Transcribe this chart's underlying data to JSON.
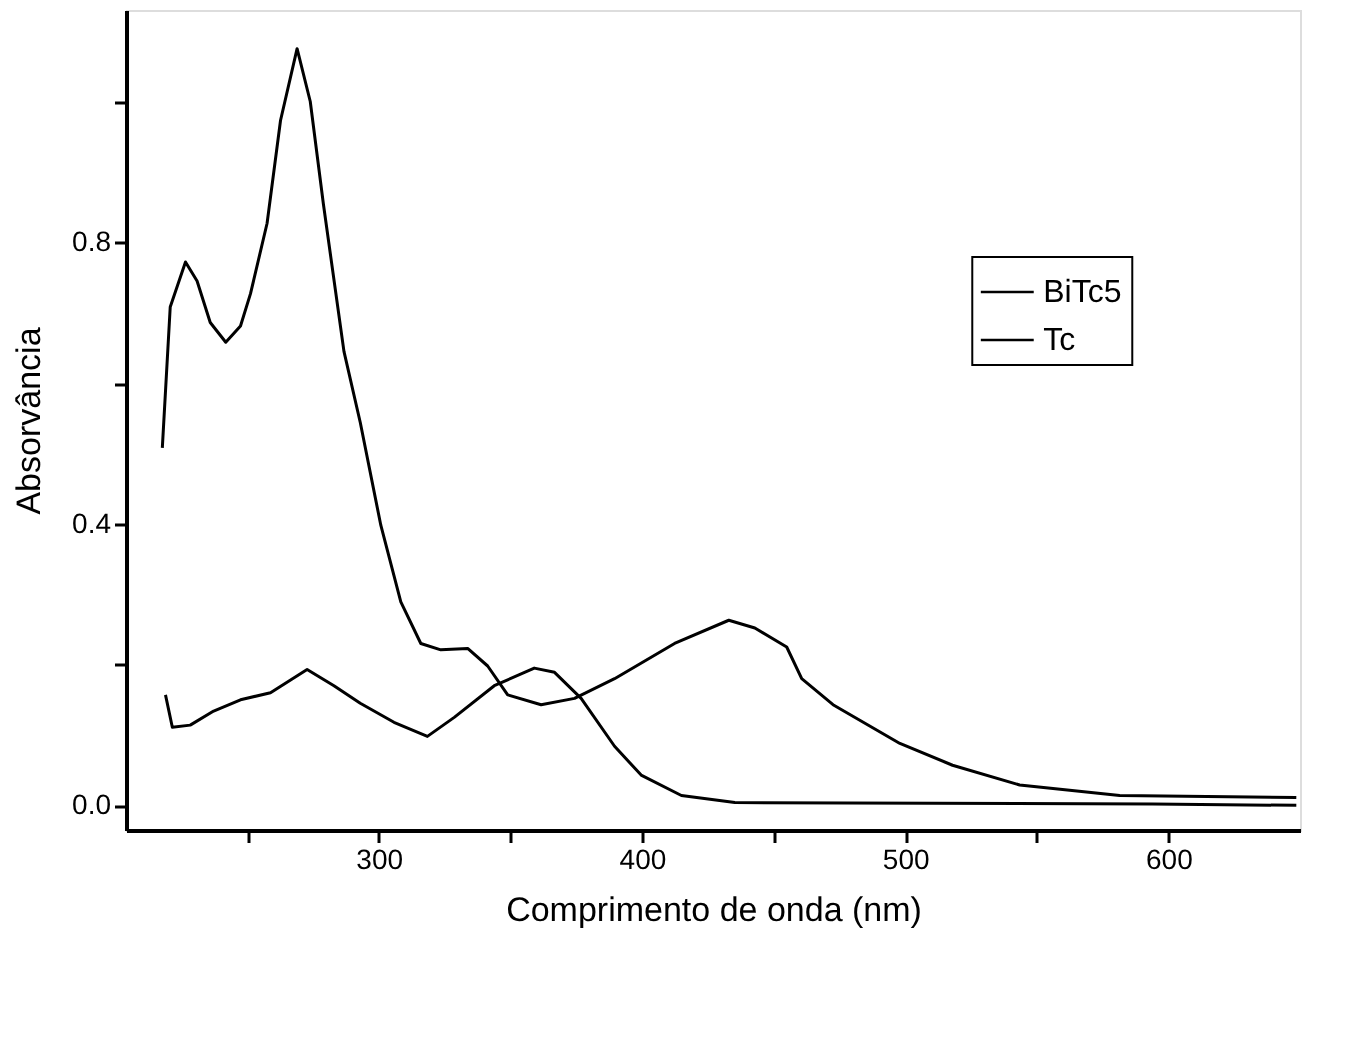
{
  "chart_data": {
    "type": "line",
    "xlabel": "Comprimento de onda (nm)",
    "ylabel": "Absorvância",
    "xlim": [
      204,
      650
    ],
    "ylim": [
      -0.035,
      1.13
    ],
    "xticks": [
      {
        "value": 250,
        "label": null
      },
      300,
      {
        "value": 350,
        "label": null
      },
      400,
      {
        "value": 450,
        "label": null
      },
      500,
      {
        "value": 550,
        "label": null
      },
      600
    ],
    "yticks": [
      {
        "value": 0,
        "label": "0.0"
      },
      {
        "value": 0.2,
        "label": null
      },
      0.4,
      {
        "value": 0.6,
        "label": null
      },
      0.8,
      {
        "value": 1.0,
        "label": null
      }
    ],
    "grid": false,
    "legend": "top right",
    "marker": "none",
    "line_style": "solid",
    "series": [
      {
        "name": "BiTc5",
        "color": "#000000",
        "x": [
          217.8,
          220.8,
          226.6,
          231,
          236,
          241.9,
          247.5,
          251.3,
          257.6,
          262.7,
          269,
          274,
          279,
          286.8,
          293,
          300.8,
          308.4,
          316,
          323.6,
          333.8,
          341.4,
          349,
          361.7,
          374.4,
          389.6,
          412.4,
          433,
          442.9,
          455,
          460.7,
          472.6,
          498,
          518,
          543.5,
          581.5,
          648.6
        ],
        "values": [
          0.508,
          0.708,
          0.772,
          0.745,
          0.686,
          0.658,
          0.681,
          0.727,
          0.827,
          0.973,
          1.075,
          1.0,
          0.854,
          0.645,
          0.544,
          0.398,
          0.289,
          0.23,
          0.221,
          0.223,
          0.198,
          0.157,
          0.143,
          0.152,
          0.18,
          0.23,
          0.263,
          0.252,
          0.225,
          0.18,
          0.143,
          0.088,
          0.057,
          0.029,
          0.014,
          0.011
        ]
      },
      {
        "name": "Tc",
        "color": "#000000",
        "x": [
          219,
          221.6,
          228.4,
          237.3,
          247.5,
          258.9,
          272.8,
          283,
          293,
          305.8,
          318.5,
          328.7,
          343.9,
          359.1,
          366.8,
          376.9,
          389.6,
          399.7,
          415,
          435.3,
          594,
          648.6
        ],
        "values": [
          0.157,
          0.111,
          0.114,
          0.134,
          0.15,
          0.16,
          0.193,
          0.17,
          0.145,
          0.118,
          0.098,
          0.125,
          0.17,
          0.195,
          0.189,
          0.152,
          0.084,
          0.043,
          0.014,
          0.004,
          0.002,
          0.0
        ]
      }
    ]
  }
}
